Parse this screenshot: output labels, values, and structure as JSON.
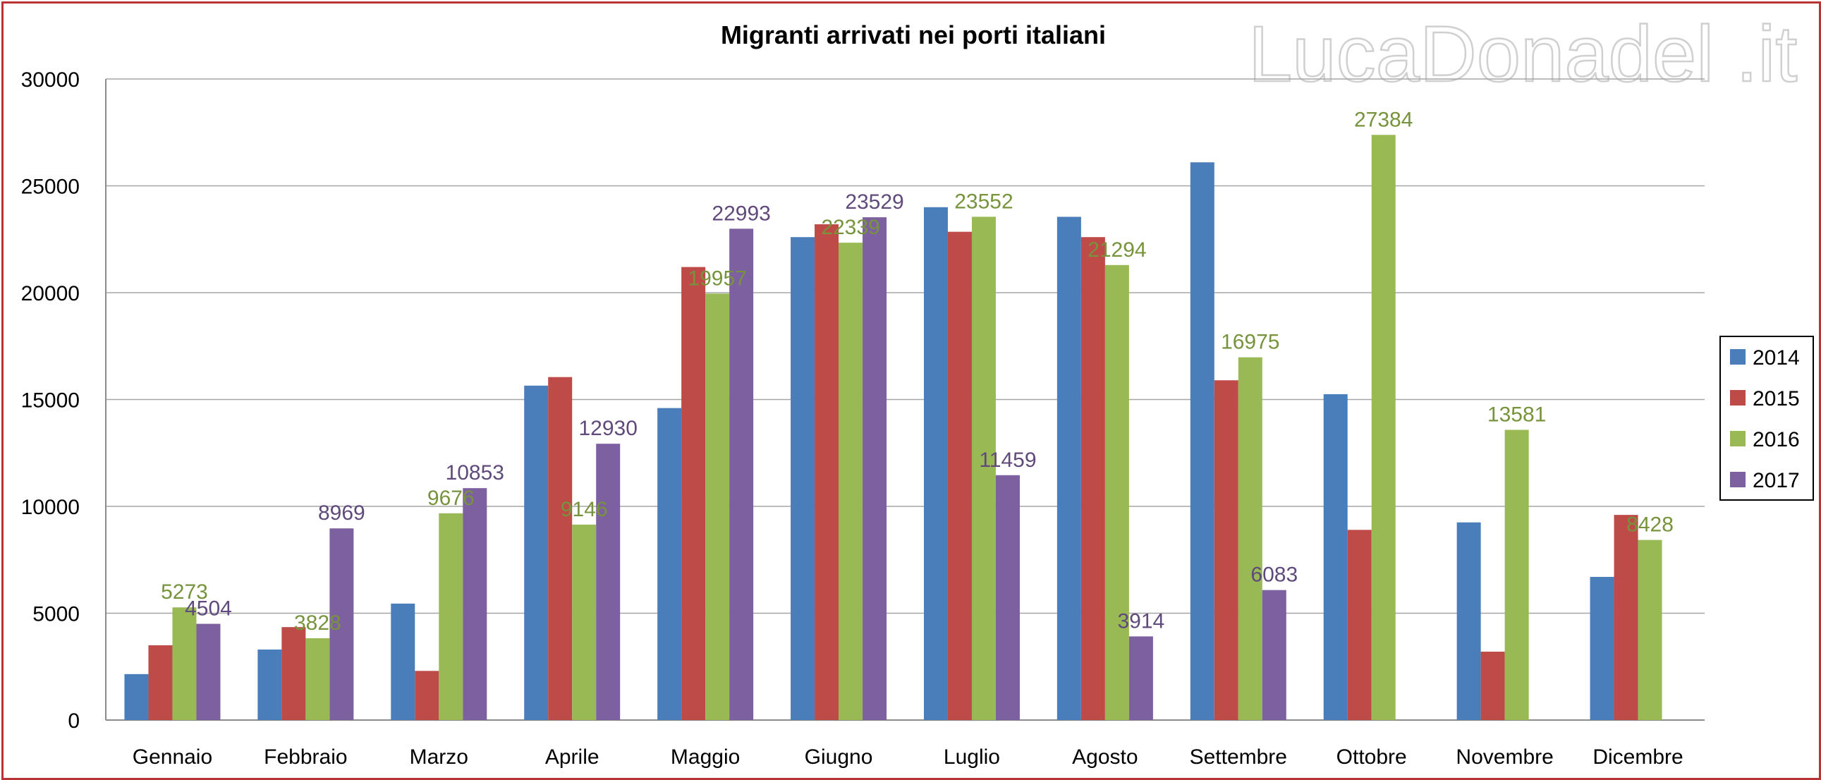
{
  "watermark": "LucaDonadel .it",
  "chart_data": {
    "type": "bar",
    "title": "Migranti arrivati nei porti italiani",
    "xlabel": "",
    "ylabel": "",
    "ylim": [
      0,
      30000
    ],
    "yticks": [
      "0",
      "5000",
      "10000",
      "15000",
      "20000",
      "25000",
      "30000"
    ],
    "grid": true,
    "legend_position": "right",
    "categories": [
      "Gennaio",
      "Febbraio",
      "Marzo",
      "Aprile",
      "Maggio",
      "Giugno",
      "Luglio",
      "Agosto",
      "Settembre",
      "Ottobre",
      "Novembre",
      "Dicembre"
    ],
    "series": [
      {
        "name": "2014",
        "color": "#4a7ebb",
        "label_color": "#4a7ebb",
        "values": [
          2150,
          3300,
          5450,
          15650,
          14600,
          22600,
          24000,
          23550,
          26100,
          15250,
          9250,
          6700
        ],
        "labels": [
          "",
          "",
          "",
          "",
          "",
          "",
          "",
          "",
          "",
          "",
          "",
          ""
        ]
      },
      {
        "name": "2015",
        "color": "#be4b48",
        "label_color": "#be4b48",
        "values": [
          3500,
          4350,
          2300,
          16050,
          21200,
          23200,
          22850,
          22600,
          15900,
          8900,
          3200,
          9600
        ],
        "labels": [
          "",
          "",
          "",
          "",
          "",
          "",
          "",
          "",
          "",
          "",
          "",
          ""
        ]
      },
      {
        "name": "2016",
        "color": "#98b954",
        "label_color": "#77933c",
        "values": [
          5273,
          3828,
          9676,
          9146,
          19957,
          22339,
          23552,
          21294,
          16975,
          27384,
          13581,
          8428
        ],
        "labels": [
          "5273",
          "3828",
          "9676",
          "9146",
          "19957",
          "22339",
          "23552",
          "21294",
          "16975",
          "27384",
          "13581",
          "8428"
        ]
      },
      {
        "name": "2017",
        "color": "#7d60a0",
        "label_color": "#604a7b",
        "values": [
          4504,
          8969,
          10853,
          12930,
          22993,
          23529,
          11459,
          3914,
          6083,
          null,
          null,
          null
        ],
        "labels": [
          "4504",
          "8969",
          "10853",
          "12930",
          "22993",
          "23529",
          "11459",
          "3914",
          "6083",
          "",
          "",
          ""
        ]
      }
    ]
  }
}
